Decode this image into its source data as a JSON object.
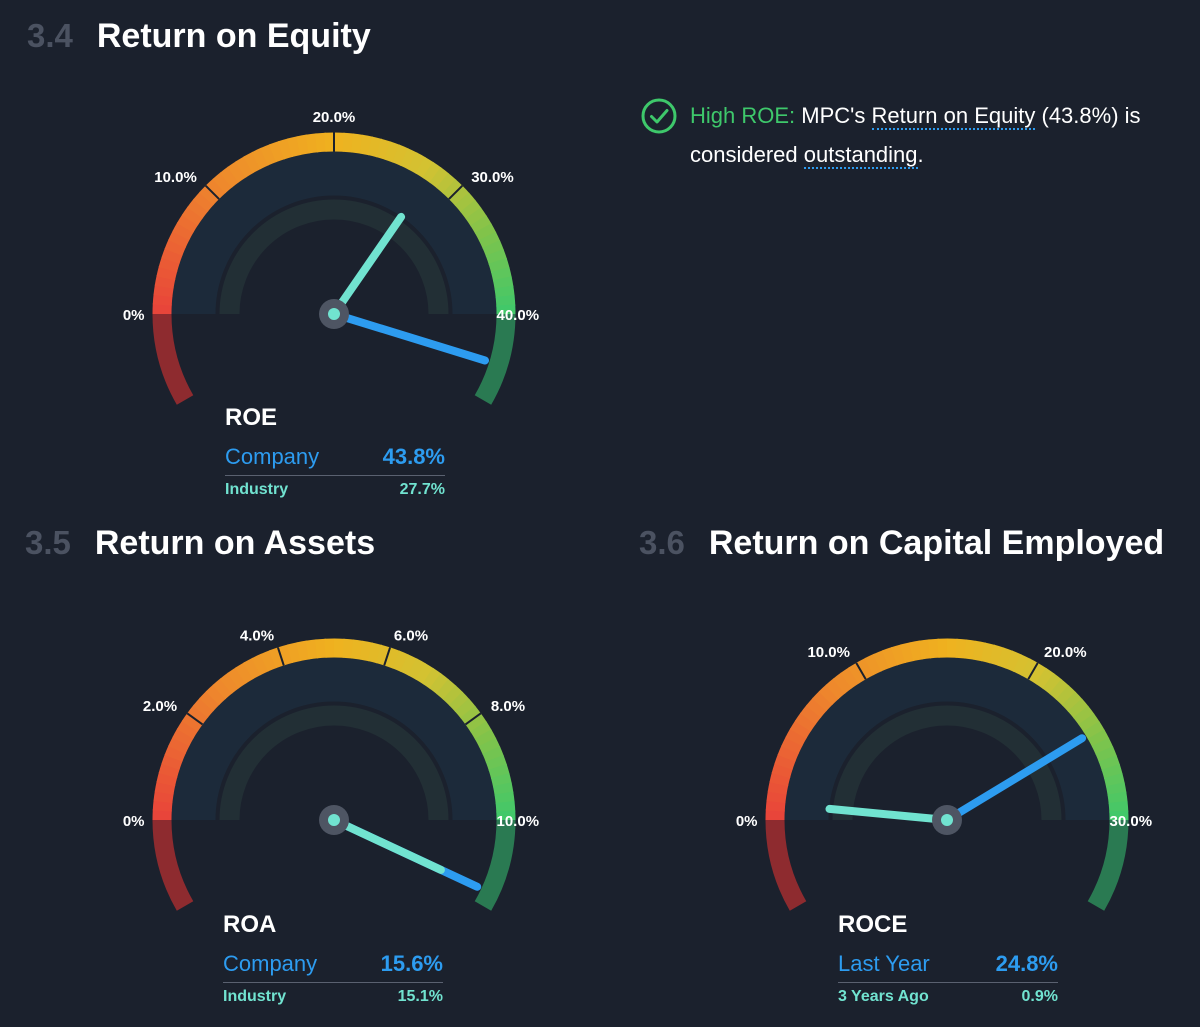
{
  "colors": {
    "company": "#2d9cf0",
    "industry": "#71e3d0",
    "positive": "#3ec86b",
    "background": "#1b212d",
    "dim": "#4b5261"
  },
  "sections": {
    "roe": {
      "number": "3.4",
      "title": "Return on Equity"
    },
    "roa": {
      "number": "3.5",
      "title": "Return on Assets"
    },
    "roce": {
      "number": "3.6",
      "title": "Return on Capital Employed"
    }
  },
  "insight": {
    "icon": "check-circle-icon",
    "label": "High ROE:",
    "text_1": "MPC's",
    "link_1": "Return on Equity",
    "text_2": "(43.8%) is considered",
    "link_2": "outstanding",
    "text_3": "."
  },
  "chart_data": [
    {
      "type": "gauge",
      "metric": "ROE",
      "min": 0,
      "max": 40,
      "tick_values": [
        0,
        10,
        20,
        30,
        40
      ],
      "tick_labels": [
        "0%",
        "10.0%",
        "20.0%",
        "30.0%",
        "40.0%"
      ],
      "series": [
        {
          "name": "Company",
          "display": "43.8%",
          "value": 43.8
        },
        {
          "name": "Industry",
          "display": "27.7%",
          "value": 27.7
        }
      ]
    },
    {
      "type": "gauge",
      "metric": "ROA",
      "min": 0,
      "max": 10,
      "tick_values": [
        0,
        2,
        4,
        6,
        8,
        10
      ],
      "tick_labels": [
        "0%",
        "2.0%",
        "4.0%",
        "6.0%",
        "8.0%",
        "10.0%"
      ],
      "series": [
        {
          "name": "Company",
          "display": "15.6%",
          "value": 15.6
        },
        {
          "name": "Industry",
          "display": "15.1%",
          "value": 15.1
        }
      ]
    },
    {
      "type": "gauge",
      "metric": "ROCE",
      "min": 0,
      "max": 30,
      "tick_values": [
        0,
        10,
        20,
        30
      ],
      "tick_labels": [
        "0%",
        "10.0%",
        "20.0%",
        "30.0%"
      ],
      "series": [
        {
          "name": "Last Year",
          "display": "24.8%",
          "value": 24.8
        },
        {
          "name": "3 Years Ago",
          "display": "0.9%",
          "value": 0.9
        }
      ]
    }
  ]
}
